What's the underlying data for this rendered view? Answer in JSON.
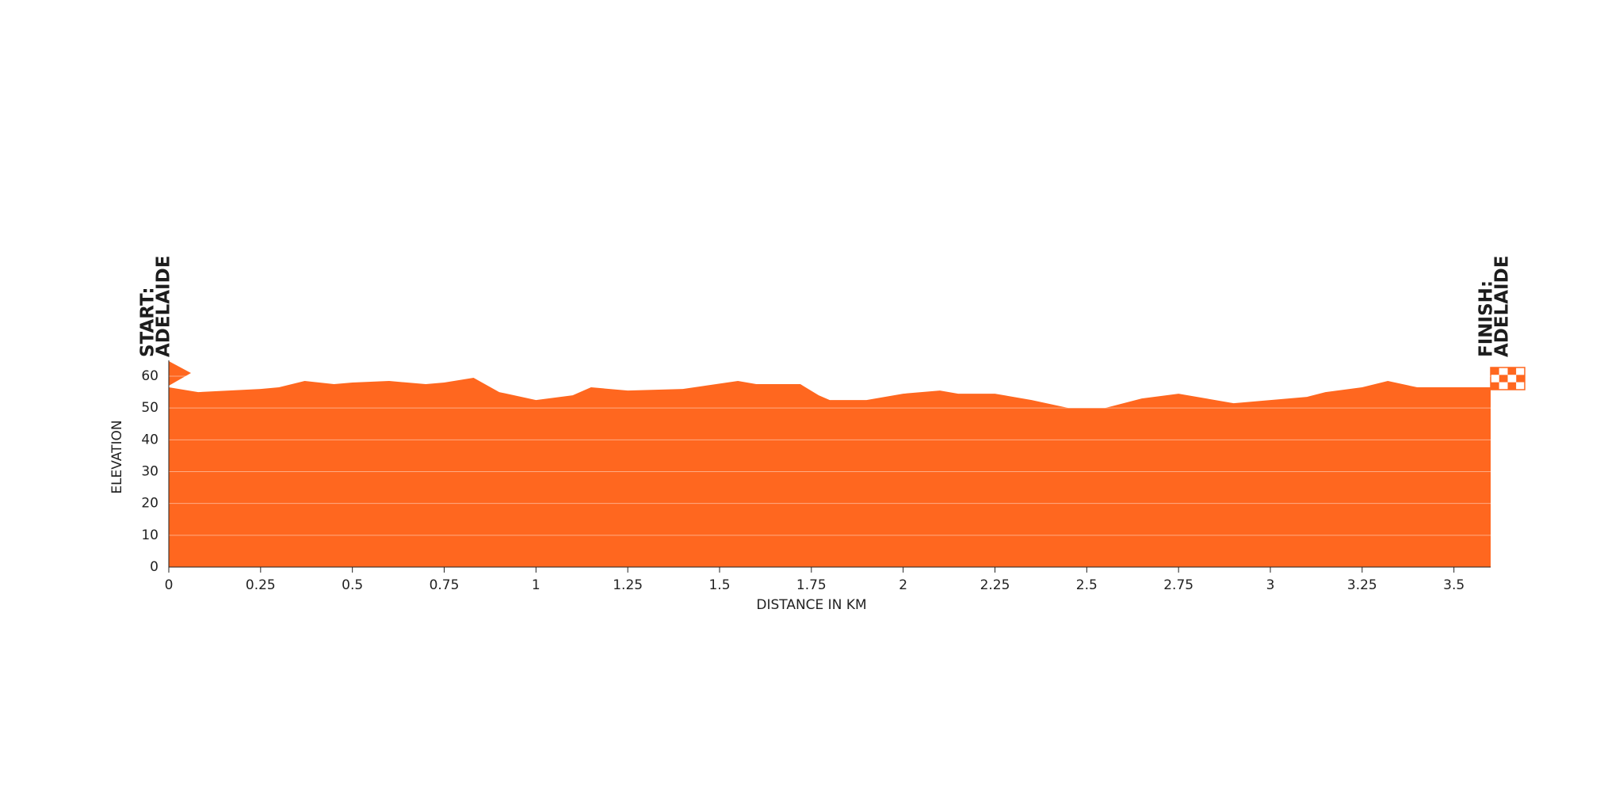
{
  "chart_data": {
    "type": "area",
    "x_label": "DISTANCE IN KM",
    "y_label": "ELEVATION",
    "start_label": [
      "START:",
      "ADELAIDE"
    ],
    "finish_label": [
      "FINISH:",
      "ADELAIDE"
    ],
    "color": "#ff671f",
    "grid": true,
    "xlim": [
      0,
      3.6
    ],
    "ylim": [
      0,
      60
    ],
    "xticks": [
      0,
      0.25,
      0.5,
      0.75,
      1,
      1.25,
      1.5,
      1.75,
      2,
      2.25,
      2.5,
      2.75,
      3,
      3.25,
      3.5
    ],
    "yticks": [
      0,
      10,
      20,
      30,
      40,
      50,
      60
    ],
    "x": [
      0,
      0.08,
      0.25,
      0.3,
      0.37,
      0.45,
      0.5,
      0.6,
      0.7,
      0.75,
      0.83,
      0.9,
      1.0,
      1.1,
      1.15,
      1.25,
      1.4,
      1.55,
      1.6,
      1.72,
      1.77,
      1.8,
      1.9,
      2.0,
      2.1,
      2.15,
      2.25,
      2.35,
      2.45,
      2.55,
      2.65,
      2.75,
      2.9,
      3.0,
      3.1,
      3.15,
      3.25,
      3.32,
      3.4,
      3.6
    ],
    "values": [
      56.5,
      55,
      56,
      56.5,
      58.5,
      57.5,
      58,
      58.5,
      57.5,
      58,
      59.5,
      55,
      52.5,
      54,
      56.5,
      55.5,
      56,
      58.5,
      57.5,
      57.5,
      54,
      52.5,
      52.5,
      54.5,
      55.5,
      54.5,
      54.5,
      52.5,
      50,
      50,
      53,
      54.5,
      51.5,
      52.5,
      53.5,
      55,
      56.5,
      58.5,
      56.5,
      56.5
    ]
  }
}
